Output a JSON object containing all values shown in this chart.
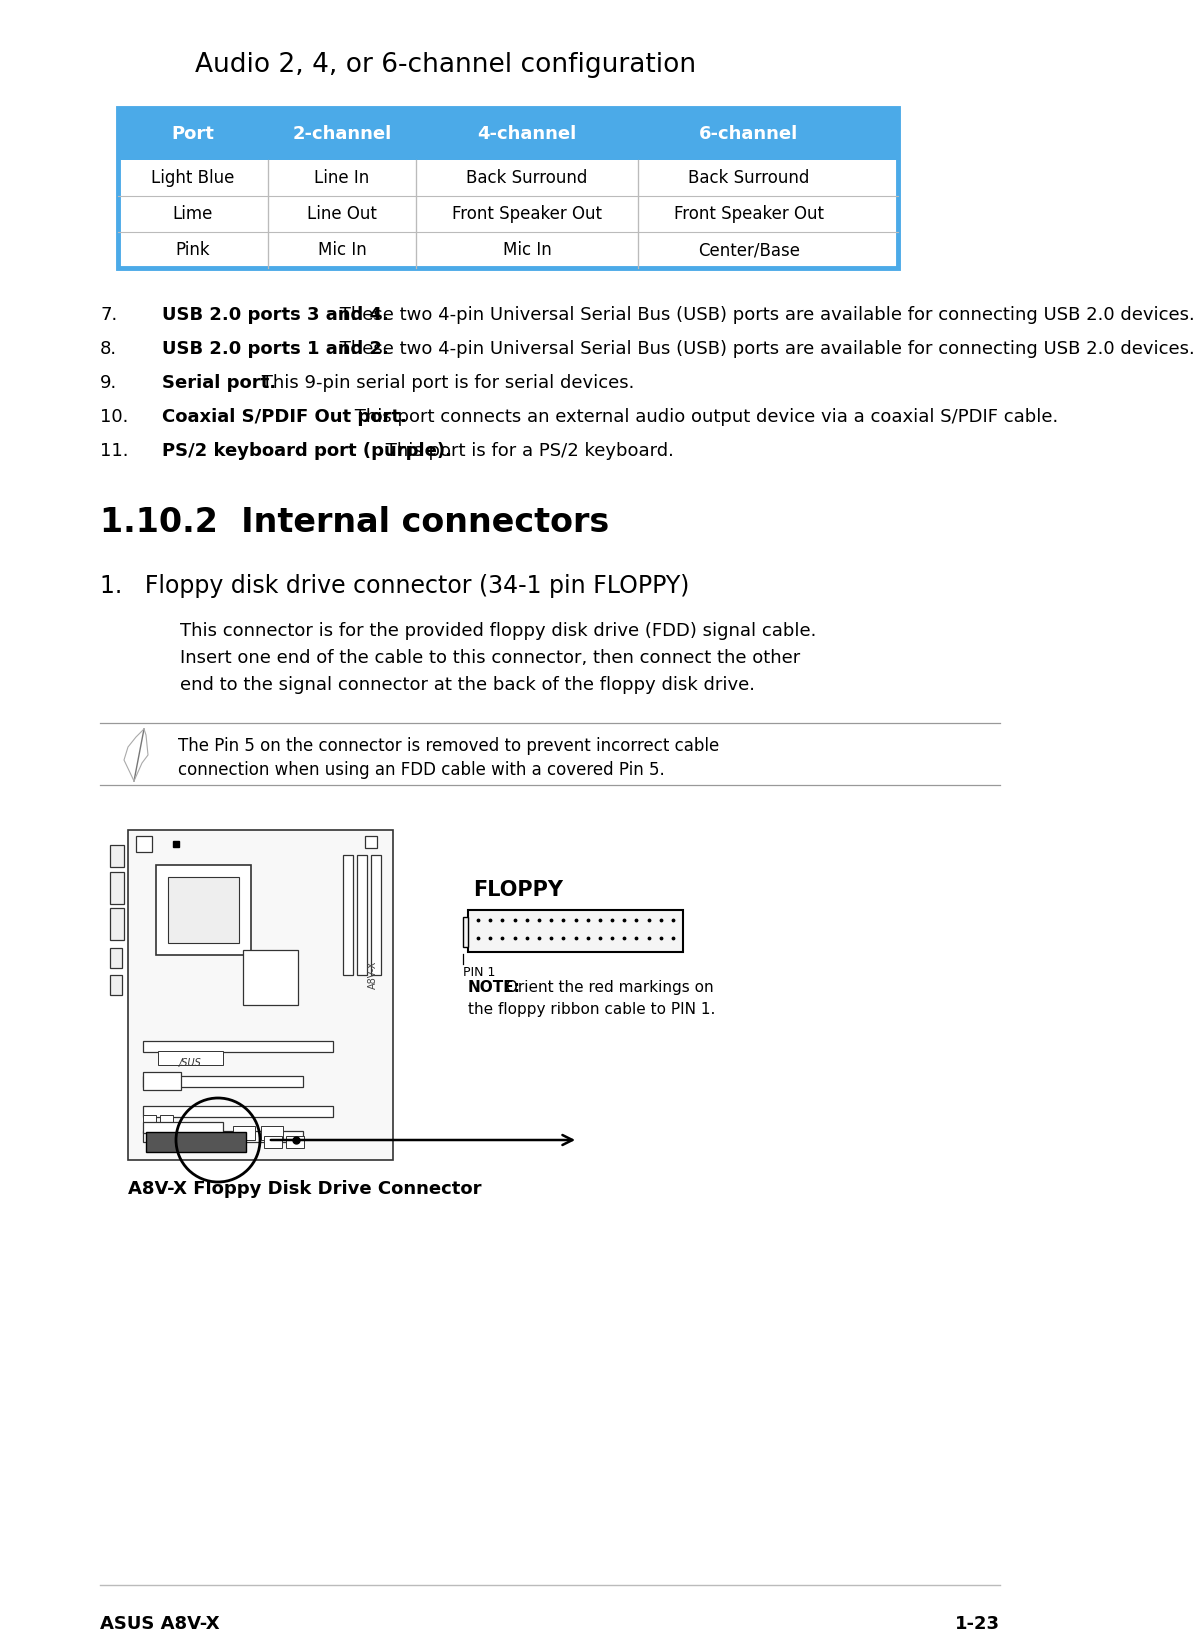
{
  "page_bg": "#ffffff",
  "section_title": "Audio 2, 4, or 6-channel configuration",
  "table_header_bg": "#4baae8",
  "table_headers": [
    "Port",
    "2-channel",
    "4-channel",
    "6-channel"
  ],
  "table_rows": [
    [
      "Light Blue",
      "Line In",
      "Back Surround",
      "Back Surround"
    ],
    [
      "Lime",
      "Line Out",
      "Front Speaker Out",
      "Front Speaker Out"
    ],
    [
      "Pink",
      "Mic In",
      "Mic In",
      "Center/Base"
    ]
  ],
  "numbered_items": [
    {
      "num": "7.",
      "bold": "USB 2.0 ports 3 and 4.",
      "rest": " These two 4-pin Universal Serial Bus (USB) ports are available for connecting USB 2.0 devices."
    },
    {
      "num": "8.",
      "bold": "USB 2.0 ports 1 and 2.",
      "rest": " These two 4-pin Universal Serial Bus (USB) ports are available for connecting USB 2.0 devices."
    },
    {
      "num": "9.",
      "bold": "Serial port.",
      "rest": " This 9-pin serial port is for serial devices."
    },
    {
      "num": "10.",
      "bold": "Coaxial S/PDIF Out port.",
      "rest": " This port connects an external audio output device via a coaxial S/PDIF cable."
    },
    {
      "num": "11.",
      "bold": "PS/2 keyboard port (purple).",
      "rest": " This port is for a PS/2 keyboard."
    }
  ],
  "section2_title": "1.10.2  Internal connectors",
  "subsection1_title": "1.   Floppy disk drive connector (34-1 pin FLOPPY)",
  "para_lines": [
    "This connector is for the provided floppy disk drive (FDD) signal cable.",
    "Insert one end of the cable to this connector, then connect the other",
    "end to the signal connector at the back of the floppy disk drive."
  ],
  "note_lines": [
    "The Pin 5 on the connector is removed to prevent incorrect cable",
    "connection when using an FDD cable with a covered Pin 5."
  ],
  "floppy_label": "FLOPPY",
  "pin1_label": "PIN 1",
  "note_label": "NOTE:",
  "note_rest_line1": " Orient the red markings on",
  "note_rest_line2": "the floppy ribbon cable to PIN 1.",
  "caption": "A8V-X Floppy Disk Drive Connector",
  "footer_left": "ASUS A8V-X",
  "footer_right": "1-23",
  "text_color": "#000000",
  "divider_color": "#bbbbbb",
  "note_line_color": "#999999",
  "table_row_border": "#888888"
}
